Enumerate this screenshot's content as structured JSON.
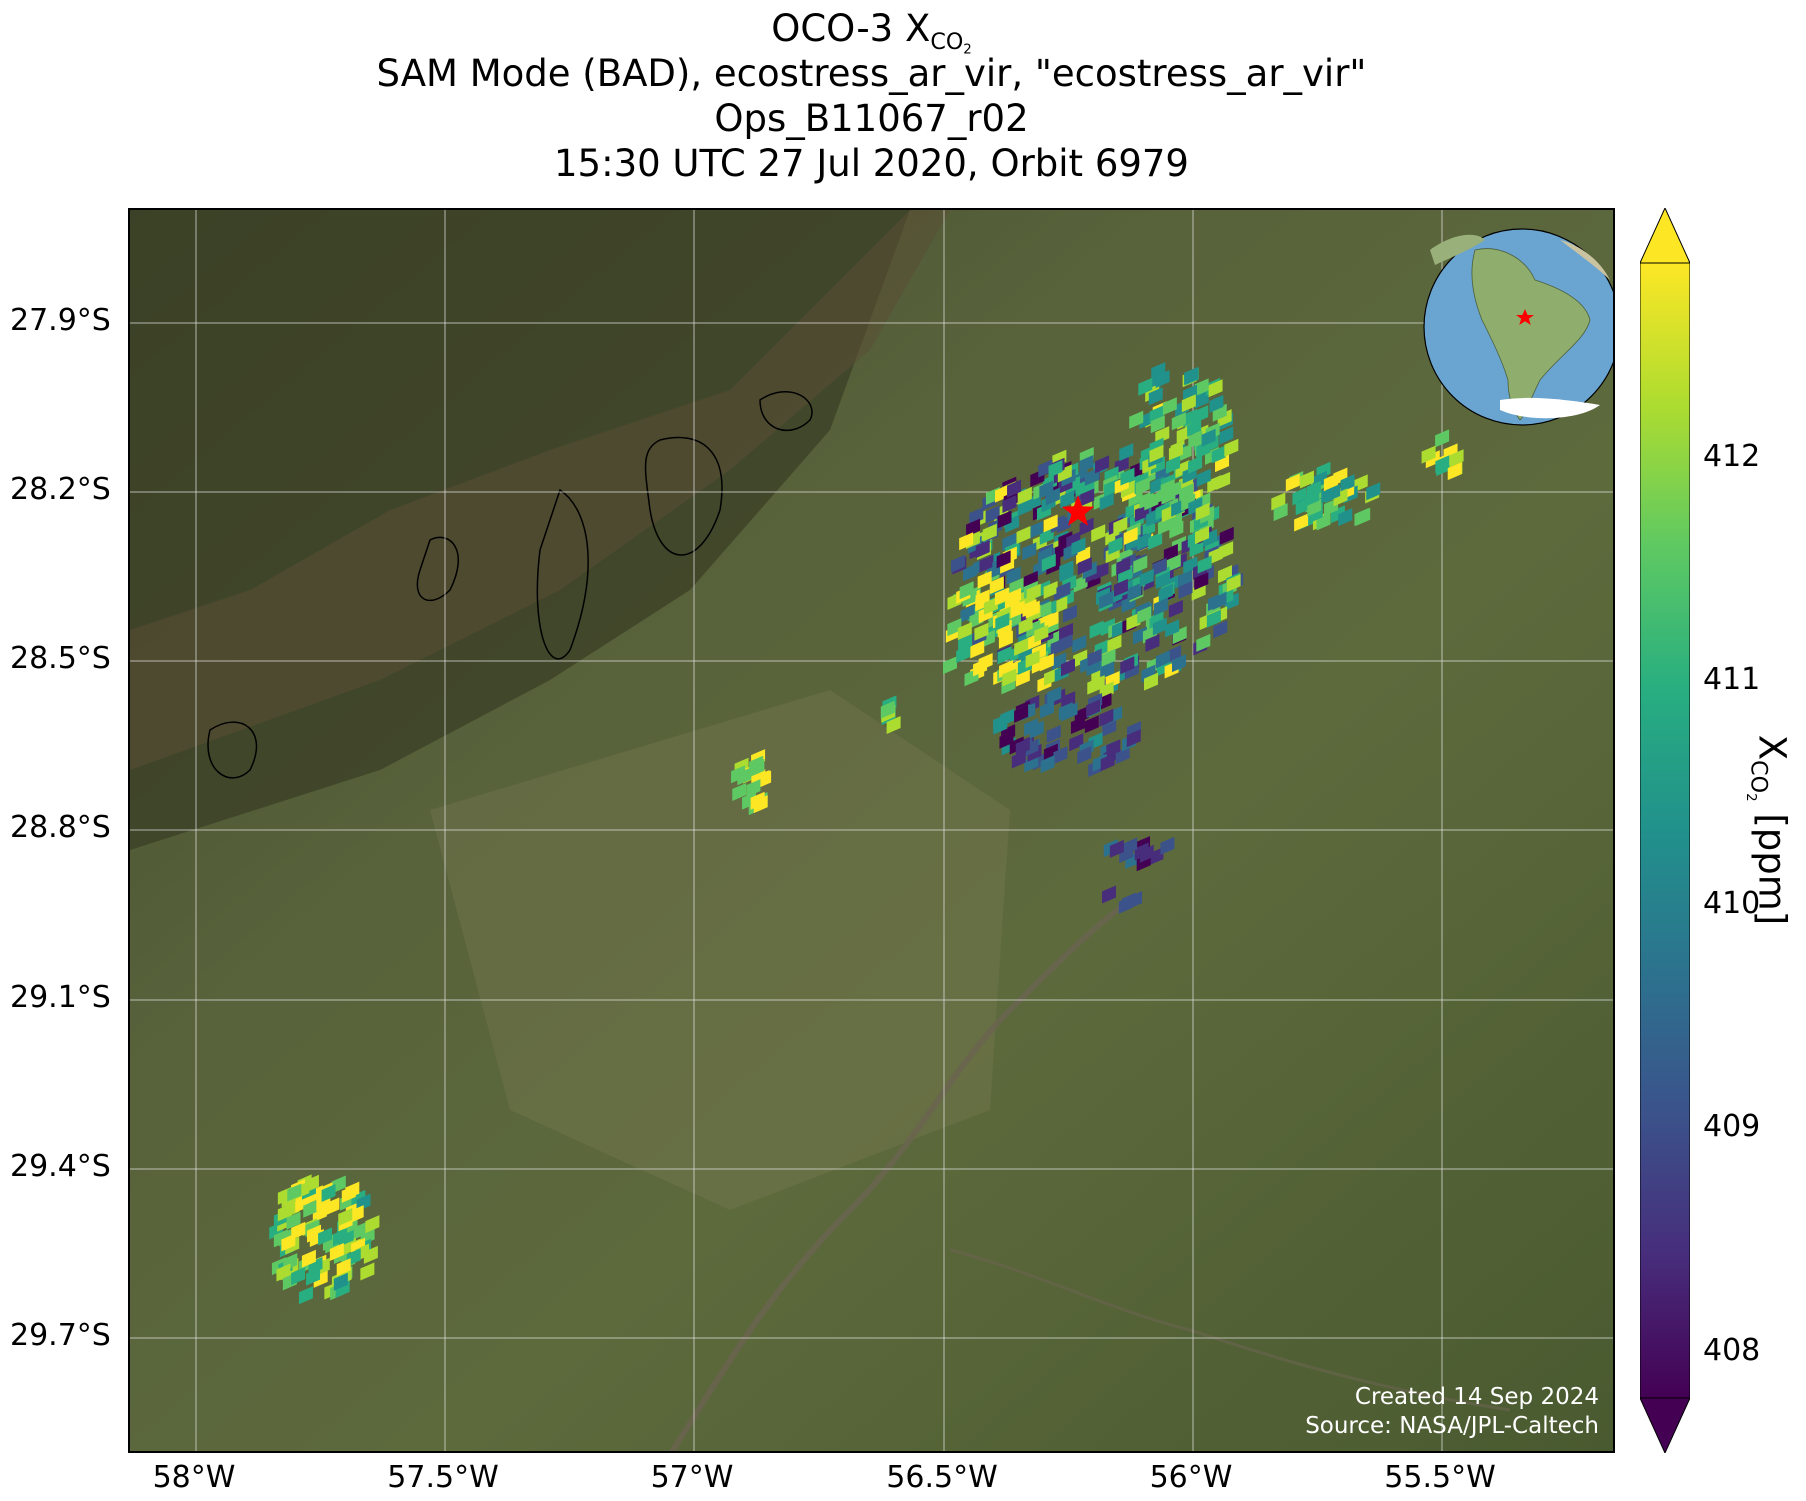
{
  "title": {
    "line1_prefix": "OCO-3 X",
    "line1_sub": "CO",
    "line1_sub2": "2",
    "line2": "SAM Mode (BAD), ecostress_ar_vir, \"ecostress_ar_vir\"",
    "line3": "Ops_B11067_r02",
    "line4": "15:30 UTC 27 Jul 2020, Orbit 6979"
  },
  "map": {
    "lon_ticks": [
      "58°W",
      "57.5°W",
      "57°W",
      "56.5°W",
      "56°W",
      "55.5°W"
    ],
    "lat_ticks": [
      "27.9°S",
      "28.2°S",
      "28.5°S",
      "28.8°S",
      "29.1°S",
      "29.4°S",
      "29.7°S"
    ],
    "target_marker": "red-star",
    "inset": "globe-south-america-locator"
  },
  "credits": {
    "created": "Created 14 Sep 2024",
    "source": "Source: NASA/JPL-Caltech"
  },
  "colorbar": {
    "ticks": [
      "408",
      "409",
      "410",
      "411",
      "412"
    ],
    "label_prefix": "X",
    "label_sub": "CO",
    "label_sub2": "2",
    "label_suffix": " [ppm]",
    "colormap": "viridis",
    "min": 407.7,
    "max": 412.9,
    "extend": "both"
  },
  "colors": {
    "target_star": "#ff0000",
    "grid": "#e8e8e8",
    "credits_text": "#ffffff"
  }
}
